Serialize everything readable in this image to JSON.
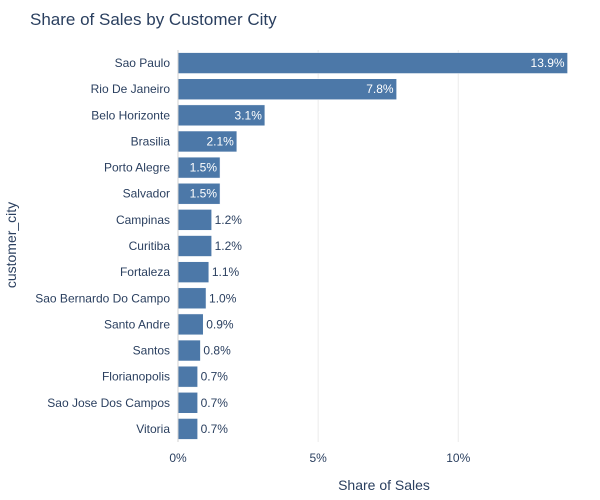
{
  "chart_data": {
    "type": "bar",
    "orientation": "horizontal",
    "title": "Share of Sales by Customer City",
    "xlabel": "Share of Sales",
    "ylabel": "customer_city",
    "xlim": [
      0,
      14.7
    ],
    "xticks": [
      0,
      5,
      10
    ],
    "xtick_labels": [
      "0%",
      "5%",
      "10%"
    ],
    "grid": true,
    "bar_color": "#4c78a8",
    "categories": [
      "Sao Paulo",
      "Rio De Janeiro",
      "Belo Horizonte",
      "Brasilia",
      "Porto Alegre",
      "Salvador",
      "Campinas",
      "Curitiba",
      "Fortaleza",
      "Sao Bernardo Do Campo",
      "Santo Andre",
      "Santos",
      "Florianopolis",
      "Sao Jose Dos Campos",
      "Vitoria"
    ],
    "values": [
      13.9,
      7.8,
      3.1,
      2.1,
      1.5,
      1.5,
      1.2,
      1.2,
      1.1,
      1.0,
      0.9,
      0.8,
      0.7,
      0.7,
      0.7
    ],
    "value_labels": [
      "13.9%",
      "7.8%",
      "3.1%",
      "2.1%",
      "1.5%",
      "1.5%",
      "1.2%",
      "1.2%",
      "1.1%",
      "1.0%",
      "0.9%",
      "0.8%",
      "0.7%",
      "0.7%",
      "0.7%"
    ]
  }
}
